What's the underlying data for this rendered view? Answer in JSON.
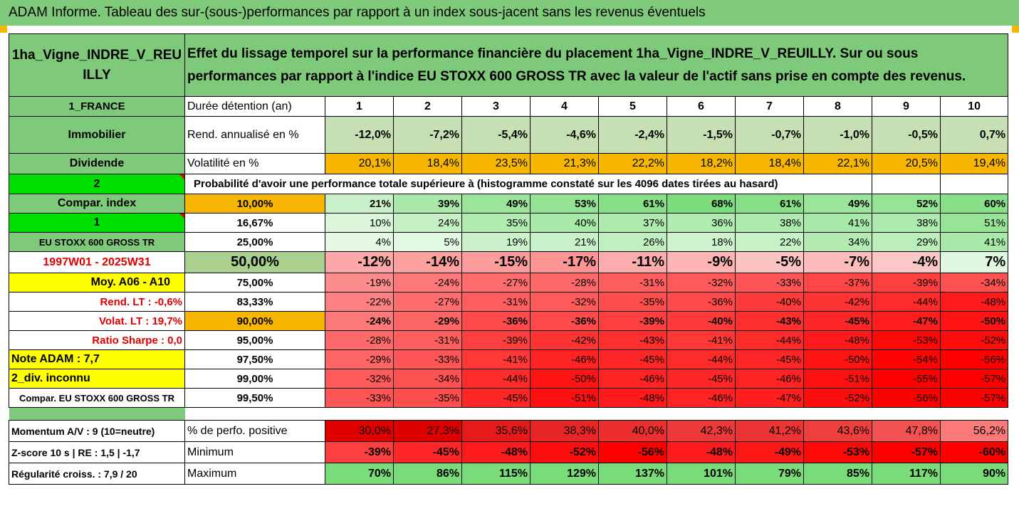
{
  "title": "ADAM Informe. Tableau des sur-(sous-)performances par rapport à un index sous-jacent sans les revenus éventuels",
  "asset_name": "1ha_Vigne_INDRE_V_REUILLY",
  "description": "Effet du lissage temporel sur la performance financière du placement 1ha_Vigne_INDRE_V_REUILLY. Sur ou sous performances par rapport à l'indice EU STOXX 600 GROSS TR avec la valeur de l'actif sans prise en compte des revenus.",
  "left_labels": {
    "country": "1_FRANCE",
    "category": "Immobilier",
    "dividend": "Dividende",
    "num2": "2",
    "compar_index": "Compar. index",
    "num1": "1",
    "index_name": "EU STOXX 600 GROSS TR",
    "period": "1997W01 - 2025W31",
    "moy": "Moy. A06 - A10",
    "rend_lt": "Rend. LT :   -0,6%",
    "volat_lt": "Volat. LT :   19,7%",
    "sharpe": "Ratio Sharpe :   0,0",
    "note": "Note ADAM : 7,7",
    "div": "2_div. inconnu",
    "compar_full": "Compar. EU STOXX 600 GROSS TR",
    "momentum": "Momentum A/V : 9 (10=neutre)",
    "zscore": "Z-score 10 s  |  RE : 1,5  |  -1,7",
    "regularite": "Régularité croiss. : 7,9 / 20"
  },
  "row_labels": {
    "duree": "Durée détention (an)",
    "rend": "Rend. annualisé en %",
    "volat": "Volatilité en %",
    "proba": "Probabilité d'avoir une performance totale supérieure à (histogramme constaté sur les 4096 dates tirées au hasard)",
    "perfo_pos": "% de perfo. positive",
    "minimum": "Minimum",
    "maximum": "Maximum"
  },
  "years": [
    "1",
    "2",
    "3",
    "4",
    "5",
    "6",
    "7",
    "8",
    "9",
    "10"
  ],
  "rend": [
    "-12,0%",
    "-7,2%",
    "-5,4%",
    "-4,6%",
    "-2,4%",
    "-1,5%",
    "-0,7%",
    "-1,0%",
    "-0,5%",
    "0,7%"
  ],
  "volat": [
    "20,1%",
    "18,4%",
    "23,5%",
    "21,3%",
    "22,2%",
    "18,2%",
    "18,4%",
    "22,1%",
    "20,5%",
    "19,4%"
  ],
  "percentiles": [
    {
      "p": "10,00%",
      "vals": [
        "21%",
        "39%",
        "49%",
        "53%",
        "61%",
        "68%",
        "61%",
        "49%",
        "52%",
        "60%"
      ]
    },
    {
      "p": "16,67%",
      "vals": [
        "10%",
        "24%",
        "35%",
        "40%",
        "37%",
        "36%",
        "38%",
        "41%",
        "38%",
        "51%"
      ]
    },
    {
      "p": "25,00%",
      "vals": [
        "4%",
        "5%",
        "19%",
        "21%",
        "26%",
        "18%",
        "22%",
        "34%",
        "29%",
        "41%"
      ]
    },
    {
      "p": "50,00%",
      "vals": [
        "-12%",
        "-14%",
        "-15%",
        "-17%",
        "-11%",
        "-9%",
        "-5%",
        "-7%",
        "-4%",
        "7%"
      ]
    },
    {
      "p": "75,00%",
      "vals": [
        "-19%",
        "-24%",
        "-27%",
        "-28%",
        "-31%",
        "-32%",
        "-33%",
        "-37%",
        "-39%",
        "-34%"
      ]
    },
    {
      "p": "83,33%",
      "vals": [
        "-22%",
        "-27%",
        "-31%",
        "-32%",
        "-35%",
        "-36%",
        "-40%",
        "-42%",
        "-44%",
        "-48%"
      ]
    },
    {
      "p": "90,00%",
      "vals": [
        "-24%",
        "-29%",
        "-36%",
        "-36%",
        "-39%",
        "-40%",
        "-43%",
        "-45%",
        "-47%",
        "-50%"
      ]
    },
    {
      "p": "95,00%",
      "vals": [
        "-28%",
        "-31%",
        "-39%",
        "-42%",
        "-43%",
        "-41%",
        "-44%",
        "-48%",
        "-53%",
        "-52%"
      ]
    },
    {
      "p": "97,50%",
      "vals": [
        "-29%",
        "-33%",
        "-41%",
        "-46%",
        "-45%",
        "-44%",
        "-45%",
        "-50%",
        "-54%",
        "-56%"
      ]
    },
    {
      "p": "99,00%",
      "vals": [
        "-32%",
        "-34%",
        "-44%",
        "-50%",
        "-46%",
        "-45%",
        "-46%",
        "-51%",
        "-55%",
        "-57%"
      ]
    },
    {
      "p": "99,50%",
      "vals": [
        "-33%",
        "-35%",
        "-45%",
        "-51%",
        "-48%",
        "-46%",
        "-47%",
        "-52%",
        "-56%",
        "-57%"
      ]
    }
  ],
  "perfo_pos": [
    "30,0%",
    "27,3%",
    "35,6%",
    "38,3%",
    "40,0%",
    "42,3%",
    "41,2%",
    "43,6%",
    "47,8%",
    "56,2%"
  ],
  "minimum": [
    "-39%",
    "-45%",
    "-48%",
    "-52%",
    "-56%",
    "-48%",
    "-49%",
    "-53%",
    "-57%",
    "-60%"
  ],
  "maximum": [
    "70%",
    "86%",
    "115%",
    "129%",
    "137%",
    "101%",
    "79%",
    "85%",
    "117%",
    "90%"
  ],
  "colors": {
    "green_header": "#7fc97a",
    "yellow": "#ffff00",
    "orange": "#f7b600",
    "bright_green": "#00e000",
    "red": "#ff0000"
  }
}
